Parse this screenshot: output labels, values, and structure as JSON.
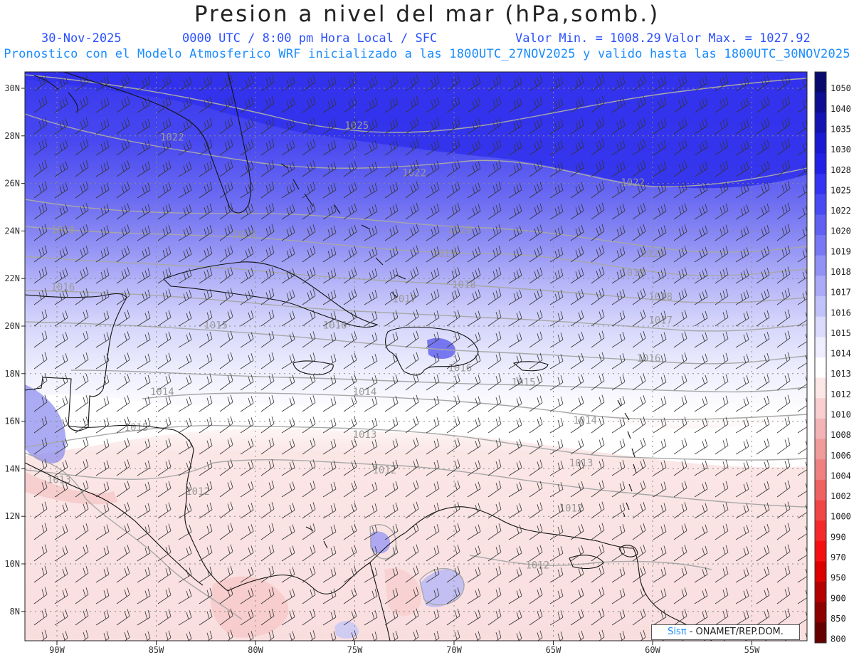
{
  "header": {
    "title": "Presion a nivel del mar (hPa,somb.)",
    "date": "30-Nov-2025",
    "time": "0000 UTC / 8:00 pm Hora Local / SFC",
    "min": "Valor Min. = 1008.29",
    "max": "Valor Max. = 1027.92",
    "model": "Pronostico con el Modelo Atmosferico WRF inicializado a las 1800UTC_27NOV2025 y valido hasta las  1800UTC_30NOV2025"
  },
  "axes": {
    "lat_ticks": [
      "30N",
      "28N",
      "26N",
      "24N",
      "22N",
      "20N",
      "18N",
      "16N",
      "14N",
      "12N",
      "10N",
      "8N"
    ],
    "lon_ticks": [
      "90W",
      "85W",
      "80W",
      "75W",
      "70W",
      "65W",
      "60W",
      "55W"
    ]
  },
  "isobar_labels": [
    {
      "text": "1025",
      "lon": -74.9,
      "lat": 28.3
    },
    {
      "text": "1022",
      "lon": -84.2,
      "lat": 27.8
    },
    {
      "text": "1022",
      "lon": -72.0,
      "lat": 26.3
    },
    {
      "text": "1022",
      "lon": -61.0,
      "lat": 25.9
    },
    {
      "text": "1020",
      "lon": -69.7,
      "lat": 23.9
    },
    {
      "text": "1020",
      "lon": -60.0,
      "lat": 22.9
    },
    {
      "text": "1019",
      "lon": -70.5,
      "lat": 22.9
    },
    {
      "text": "1019",
      "lon": -61.0,
      "lat": 22.1
    },
    {
      "text": "1018",
      "lon": -89.7,
      "lat": 23.9
    },
    {
      "text": "1018",
      "lon": -80.6,
      "lat": 23.7
    },
    {
      "text": "1018",
      "lon": -69.5,
      "lat": 21.6
    },
    {
      "text": "1018",
      "lon": -59.6,
      "lat": 21.1
    },
    {
      "text": "1017",
      "lon": -72.5,
      "lat": 21.0
    },
    {
      "text": "1017",
      "lon": -59.6,
      "lat": 20.1
    },
    {
      "text": "1016",
      "lon": -89.7,
      "lat": 21.5
    },
    {
      "text": "1016",
      "lon": -76.0,
      "lat": 19.9
    },
    {
      "text": "1016",
      "lon": -69.7,
      "lat": 18.1
    },
    {
      "text": "1016",
      "lon": -60.2,
      "lat": 18.5
    },
    {
      "text": "1015",
      "lon": -82.0,
      "lat": 19.9
    },
    {
      "text": "1015",
      "lon": -86.0,
      "lat": 15.6
    },
    {
      "text": "1015",
      "lon": -66.5,
      "lat": 17.5
    },
    {
      "text": "1014",
      "lon": -84.7,
      "lat": 17.1
    },
    {
      "text": "1014",
      "lon": -74.5,
      "lat": 17.1
    },
    {
      "text": "1014",
      "lon": -63.4,
      "lat": 15.9
    },
    {
      "text": "1013",
      "lon": -74.5,
      "lat": 15.3
    },
    {
      "text": "1013",
      "lon": -63.6,
      "lat": 14.1
    },
    {
      "text": "1013",
      "lon": -89.9,
      "lat": 13.4
    },
    {
      "text": "1012",
      "lon": -73.5,
      "lat": 13.8
    },
    {
      "text": "1012",
      "lon": -82.9,
      "lat": 12.9
    },
    {
      "text": "1012",
      "lon": -64.1,
      "lat": 12.2
    },
    {
      "text": "1012",
      "lon": -65.8,
      "lat": 9.8
    }
  ],
  "colorbar": {
    "labels": [
      "1050",
      "1040",
      "1035",
      "1030",
      "1028",
      "1025",
      "1022",
      "1020",
      "1019",
      "1018",
      "1017",
      "1016",
      "1015",
      "1014",
      "1013",
      "1012",
      "1010",
      "1008",
      "1006",
      "1004",
      "1002",
      "1000",
      "990",
      "970",
      "950",
      "900",
      "850",
      "800"
    ],
    "colors": [
      "#0a0a6e",
      "#0e0e92",
      "#1414b4",
      "#1a1ad2",
      "#2222e6",
      "#3434f2",
      "#4a4af4",
      "#6060f2",
      "#7878f4",
      "#9292f6",
      "#aaaaf8",
      "#c2c2fa",
      "#dadafc",
      "#eeeefe",
      "#ffffff",
      "#fde6e6",
      "#f8cece",
      "#f2b4b4",
      "#f09a9a",
      "#f08080",
      "#f06262",
      "#f04646",
      "#f42a2a",
      "#f41010",
      "#dc0000",
      "#b40000",
      "#8c0000",
      "#640000"
    ]
  },
  "credit": {
    "sis": "Sisπ",
    "text": " - ONAMET/REP.DOM."
  }
}
